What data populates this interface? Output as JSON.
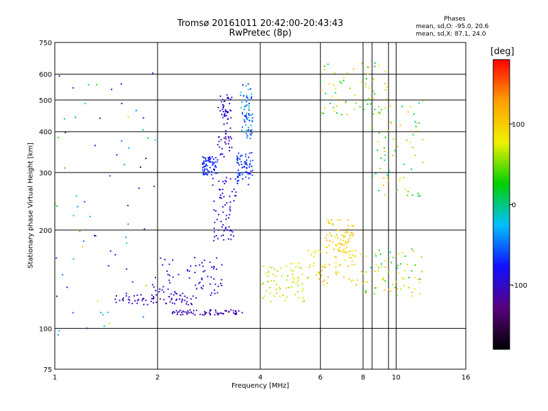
{
  "header": {
    "title": "Tromsø 20161011 20:42:00-20:43:43",
    "subtitle": "RwPretec (8p)",
    "phase_header": "Phases",
    "phase_line1": "mean, sd,O: -95.0, 20.6",
    "phase_line2": "mean, sd,X:  87.1, 24.0"
  },
  "colorbar": {
    "unit_label": "[deg]",
    "range": [
      -180,
      180
    ],
    "ticks": [
      "100",
      "0",
      "-100"
    ],
    "tick_values": [
      100,
      0,
      -100
    ],
    "palette": [
      "#000000",
      "#5a0080",
      "#1010ff",
      "#00c0ff",
      "#00d000",
      "#f0f000",
      "#ffa000",
      "#ff0000"
    ]
  },
  "chart_data": {
    "type": "scatter",
    "xlabel": "Frequency [MHz]",
    "ylabel": "Stationary phase Virtual Height [km]",
    "xscale": "log",
    "yscale": "log",
    "xlim": [
      1,
      16
    ],
    "ylim": [
      75,
      750
    ],
    "x_ticks": [
      1,
      2,
      4,
      6,
      8,
      10,
      16
    ],
    "x_tick_labels": [
      "1",
      "2",
      "4",
      "6",
      "8",
      "10",
      "16"
    ],
    "y_ticks": [
      75,
      100,
      200,
      300,
      400,
      500,
      600,
      750
    ],
    "y_tick_labels": [
      "75",
      "100",
      "200",
      "300",
      "400",
      "500",
      "600",
      "750"
    ],
    "grid": true,
    "color_by": "phase [deg]",
    "clusters": [
      {
        "freq": [
          1.5,
          2.6
        ],
        "height": [
          118,
          128
        ],
        "phase": -105,
        "spread": 8
      },
      {
        "freq": [
          1.9,
          3.1
        ],
        "height": [
          125,
          165
        ],
        "phase": -95,
        "spread": 15
      },
      {
        "freq": [
          2.2,
          3.6
        ],
        "height": [
          110,
          114
        ],
        "phase": -110,
        "spread": 10
      },
      {
        "freq": [
          2.9,
          3.4
        ],
        "height": [
          185,
          290
        ],
        "phase": -95,
        "spread": 12
      },
      {
        "freq": [
          2.7,
          3.0
        ],
        "height": [
          295,
          335
        ],
        "phase": -70,
        "spread": 10
      },
      {
        "freq": [
          3.0,
          3.3
        ],
        "height": [
          330,
          520
        ],
        "phase": -100,
        "spread": 12
      },
      {
        "freq": [
          3.4,
          3.8
        ],
        "height": [
          275,
          345
        ],
        "phase": -65,
        "spread": 18
      },
      {
        "freq": [
          3.5,
          3.8
        ],
        "height": [
          380,
          560
        ],
        "phase": -40,
        "spread": 45
      },
      {
        "freq": [
          4.0,
          5.5
        ],
        "height": [
          120,
          160
        ],
        "phase": 80,
        "spread": 30
      },
      {
        "freq": [
          5.5,
          8.0
        ],
        "height": [
          135,
          175
        ],
        "phase": 95,
        "spread": 25
      },
      {
        "freq": [
          6.2,
          7.5
        ],
        "height": [
          170,
          215
        ],
        "phase": 100,
        "spread": 20
      },
      {
        "freq": [
          8.0,
          12.0
        ],
        "height": [
          125,
          175
        ],
        "phase": 60,
        "spread": 60
      },
      {
        "freq": [
          6.0,
          9.5
        ],
        "height": [
          450,
          650
        ],
        "phase": 60,
        "spread": 60
      },
      {
        "freq": [
          8.5,
          12.0
        ],
        "height": [
          250,
          520
        ],
        "phase": 50,
        "spread": 70
      },
      {
        "freq": [
          1.0,
          2.0
        ],
        "height": [
          95,
          620
        ],
        "phase": -30,
        "spread": 120
      }
    ]
  }
}
